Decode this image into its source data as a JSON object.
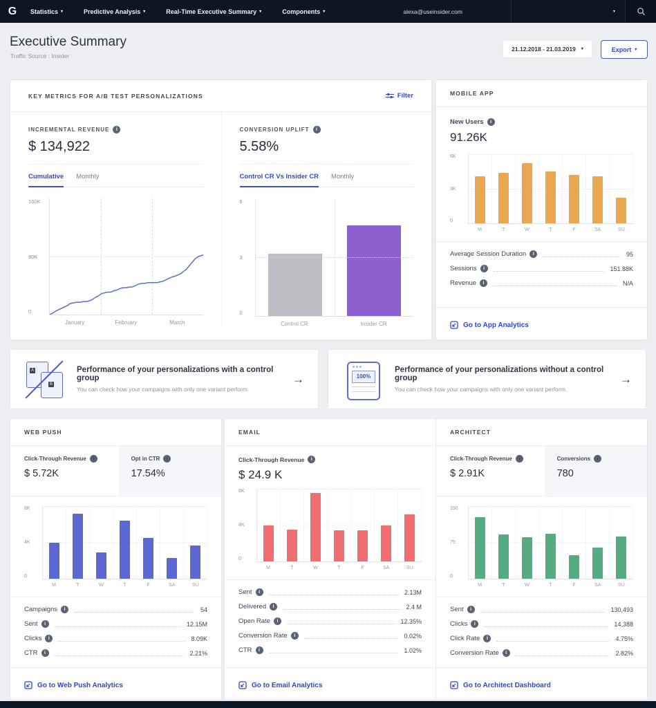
{
  "icons": {
    "caret": "▾",
    "arrow": "→",
    "info": "i"
  },
  "nav": {
    "logo": "G",
    "items": [
      {
        "label": "Statistics"
      },
      {
        "label": "Predictive Analysis"
      },
      {
        "label": "Real-Time Executive Summary"
      },
      {
        "label": "Components"
      }
    ],
    "account_email": "alexa@useinsider.com"
  },
  "header": {
    "title": "Executive Summary",
    "subtitle": "Traffic Source : Insider",
    "date_range": "21.12.2018 - 21.03.2019",
    "export_label": "Export"
  },
  "key_metrics": {
    "title": "KEY METRICS FOR A/B TEST PERSONALIZATIONS",
    "filter_label": "Filter",
    "incremental_revenue": {
      "label": "INCREMENTAL REVENUE",
      "value": "$ 134,922",
      "tabs": [
        {
          "label": "Cumulative"
        },
        {
          "label": "Monthly"
        }
      ],
      "chart": {
        "type": "line",
        "color": "#5b6ece",
        "ymax": 160,
        "yticks": [
          "160K",
          "80K",
          "0"
        ],
        "xticks": [
          "January",
          "February",
          "March"
        ],
        "points": [
          [
            0,
            0
          ],
          [
            2,
            2
          ],
          [
            4,
            5
          ],
          [
            6,
            7
          ],
          [
            8,
            9
          ],
          [
            10,
            11
          ],
          [
            12,
            13
          ],
          [
            13,
            15
          ],
          [
            15,
            16
          ],
          [
            18,
            17
          ],
          [
            20,
            17
          ],
          [
            22,
            18
          ],
          [
            24,
            18
          ],
          [
            26,
            19
          ],
          [
            28,
            21
          ],
          [
            30,
            24
          ],
          [
            32,
            26
          ],
          [
            34,
            29
          ],
          [
            36,
            30
          ],
          [
            38,
            31
          ],
          [
            40,
            31
          ],
          [
            42,
            33
          ],
          [
            44,
            34
          ],
          [
            46,
            36
          ],
          [
            48,
            37
          ],
          [
            50,
            37
          ],
          [
            52,
            38
          ],
          [
            54,
            38
          ],
          [
            56,
            40
          ],
          [
            58,
            42
          ],
          [
            60,
            43
          ],
          [
            62,
            43
          ],
          [
            64,
            44
          ],
          [
            67,
            44
          ],
          [
            70,
            44
          ],
          [
            72,
            45
          ],
          [
            74,
            46
          ],
          [
            76,
            48
          ],
          [
            78,
            50
          ],
          [
            80,
            52
          ],
          [
            82,
            53
          ],
          [
            84,
            55
          ],
          [
            86,
            57
          ],
          [
            87,
            59
          ],
          [
            89,
            62
          ],
          [
            91,
            67
          ],
          [
            93,
            72
          ],
          [
            95,
            77
          ],
          [
            97,
            80
          ],
          [
            100,
            82
          ]
        ]
      }
    },
    "conversion_uplift": {
      "label": "CONVERSION UPLIFT",
      "value": "5.58%",
      "tabs": [
        {
          "label": "Control CR Vs Insider CR"
        },
        {
          "label": "Monthly"
        }
      ],
      "chart": {
        "type": "bar",
        "ymax": 6,
        "yticks": [
          "6",
          "3",
          "0"
        ],
        "categories": [
          "Control CR",
          "Insider CR"
        ],
        "values": [
          3.2,
          4.6
        ],
        "colors": [
          "#bdbdc4",
          "#8c61cf"
        ]
      }
    }
  },
  "mobile_app": {
    "title": "MOBILE APP",
    "metric": {
      "label": "New Users",
      "value": "91.26K"
    },
    "chart": {
      "type": "bar",
      "ymax": 6,
      "color": "#eaa751",
      "yticks": [
        "6K",
        "3K",
        "0"
      ],
      "categories": [
        "M",
        "T",
        "W",
        "T",
        "F",
        "SA",
        "SU"
      ],
      "values": [
        4.1,
        4.4,
        5.2,
        4.5,
        4.2,
        4.1,
        2.2
      ]
    },
    "stats": [
      {
        "label": "Average Session Duration",
        "value": "95"
      },
      {
        "label": "Sessions",
        "value": "151.88K"
      },
      {
        "label": "Revenue",
        "value": "N/A"
      }
    ],
    "link": "Go to App Analytics"
  },
  "banners": [
    {
      "title": "Performance of your personalizations with a control group",
      "subtitle": "You can check how your campaigns with only one variant perform.",
      "icon_letters": {
        "a": "A",
        "b": "B"
      }
    },
    {
      "title": "Performance of your personalizations without a control group",
      "subtitle": "You can check how your campaigns with only one variant perform.",
      "icon_text": "100%"
    }
  ],
  "web_push": {
    "title": "WEB PUSH",
    "tabs": [
      {
        "label": "Click-Through Revenue",
        "value": "$ 5.72K"
      },
      {
        "label": "Opt in CTR",
        "value": "17.54%"
      }
    ],
    "chart": {
      "type": "bar",
      "ymax": 8,
      "color": "#5b68d4",
      "yticks": [
        "8K",
        "4K",
        "0"
      ],
      "categories": [
        "M",
        "T",
        "W",
        "T",
        "F",
        "SA",
        "SU"
      ],
      "values": [
        4.0,
        7.2,
        2.9,
        6.4,
        4.5,
        2.3,
        3.7
      ]
    },
    "stats": [
      {
        "label": "Campaigns",
        "value": "54"
      },
      {
        "label": "Sent",
        "value": "12.15M"
      },
      {
        "label": "Clicks",
        "value": "8.09K"
      },
      {
        "label": "CTR",
        "value": "2.21%"
      }
    ],
    "link": "Go to Web Push Analytics"
  },
  "email": {
    "title": "EMAIL",
    "metric": {
      "label": "Click-Through Revenue",
      "value": "$ 24.9 K"
    },
    "chart": {
      "type": "bar",
      "ymax": 8,
      "color": "#ef6e70",
      "yticks": [
        "8K",
        "4K",
        "0"
      ],
      "categories": [
        "M",
        "T",
        "W",
        "T",
        "F",
        "SA",
        "SU"
      ],
      "values": [
        4.0,
        3.5,
        7.5,
        3.4,
        3.4,
        4.0,
        5.2
      ]
    },
    "stats": [
      {
        "label": "Sent",
        "value": "2.13M"
      },
      {
        "label": "Delivered",
        "value": "2.4 M"
      },
      {
        "label": "Open Rate",
        "value": "12.35%"
      },
      {
        "label": "Conversion Rate",
        "value": "0.02%"
      },
      {
        "label": "CTR",
        "value": "1.02%"
      }
    ],
    "link": "Go to Email Analytics"
  },
  "architect": {
    "title": "ARCHITECT",
    "tabs": [
      {
        "label": "Click-Through Revenue",
        "value": "$ 2.91K"
      },
      {
        "label": "Conversions",
        "value": "780"
      }
    ],
    "chart": {
      "type": "bar",
      "ymax": 150,
      "color": "#55ac81",
      "yticks": [
        "150",
        "75",
        "0"
      ],
      "categories": [
        "M",
        "T",
        "W",
        "T",
        "F",
        "SA",
        "SU"
      ],
      "values": [
        128,
        92,
        85,
        93,
        48,
        65,
        87
      ]
    },
    "stats": [
      {
        "label": "Sent",
        "value": "130,493"
      },
      {
        "label": "Clicks",
        "value": "14,388"
      },
      {
        "label": "Click Rate",
        "value": "4.75%"
      },
      {
        "label": "Conversion Rate",
        "value": "2.82%"
      }
    ],
    "link": "Go to Architect Dashboard"
  }
}
